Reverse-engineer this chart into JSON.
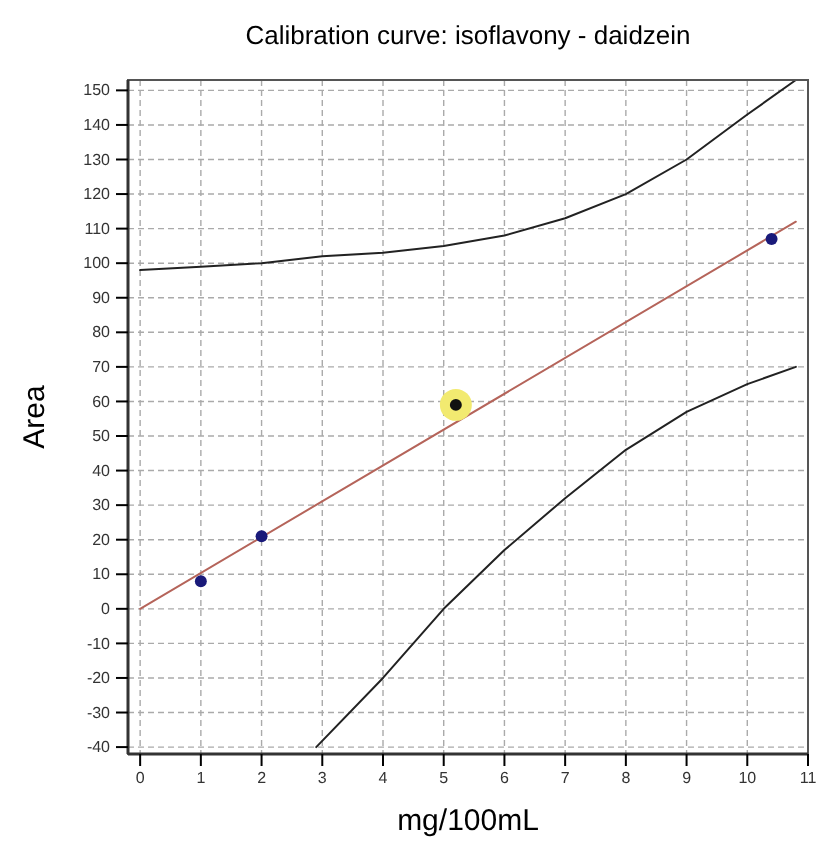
{
  "chart_data": {
    "type": "scatter",
    "title": "Calibration curve: isoflavony - daidzein",
    "xlabel": "mg/100mL",
    "ylabel": "Area",
    "xlim": [
      -0.2,
      11
    ],
    "xticks": [
      0,
      1,
      2,
      3,
      4,
      5,
      6,
      7,
      8,
      9,
      10,
      11
    ],
    "ylim": [
      -42,
      153
    ],
    "yticks": [
      -40,
      -30,
      -20,
      -10,
      0,
      10,
      20,
      30,
      40,
      50,
      60,
      70,
      80,
      90,
      100,
      110,
      120,
      130,
      140,
      150
    ],
    "grid": true,
    "series": [
      {
        "type": "line",
        "color": "#b5645a",
        "x": [
          0,
          10.8
        ],
        "values": [
          0,
          112
        ]
      },
      {
        "type": "line",
        "color": "#222222",
        "x": [
          0,
          1,
          2,
          3,
          4,
          5,
          6,
          7,
          8,
          9,
          10,
          10.8
        ],
        "values": [
          98,
          99,
          100,
          102,
          103,
          105,
          108,
          113,
          120,
          130,
          143,
          153
        ]
      },
      {
        "type": "line",
        "color": "#222222",
        "x": [
          2.9,
          4,
          5,
          6,
          7,
          8,
          9,
          10,
          10.8
        ],
        "values": [
          -40,
          -20,
          0,
          17,
          32,
          46,
          57,
          65,
          70
        ]
      },
      {
        "color": "#1a1a7a",
        "marker": "circle",
        "x": [
          1,
          2,
          10.4
        ],
        "values": [
          8,
          21,
          107
        ]
      },
      {
        "color": "#f2ea70",
        "marker": "circle",
        "x": [
          5.2
        ],
        "values": [
          59
        ]
      },
      {
        "color": "#111111",
        "marker": "circle",
        "x": [
          5.2
        ],
        "values": [
          59
        ]
      }
    ]
  }
}
